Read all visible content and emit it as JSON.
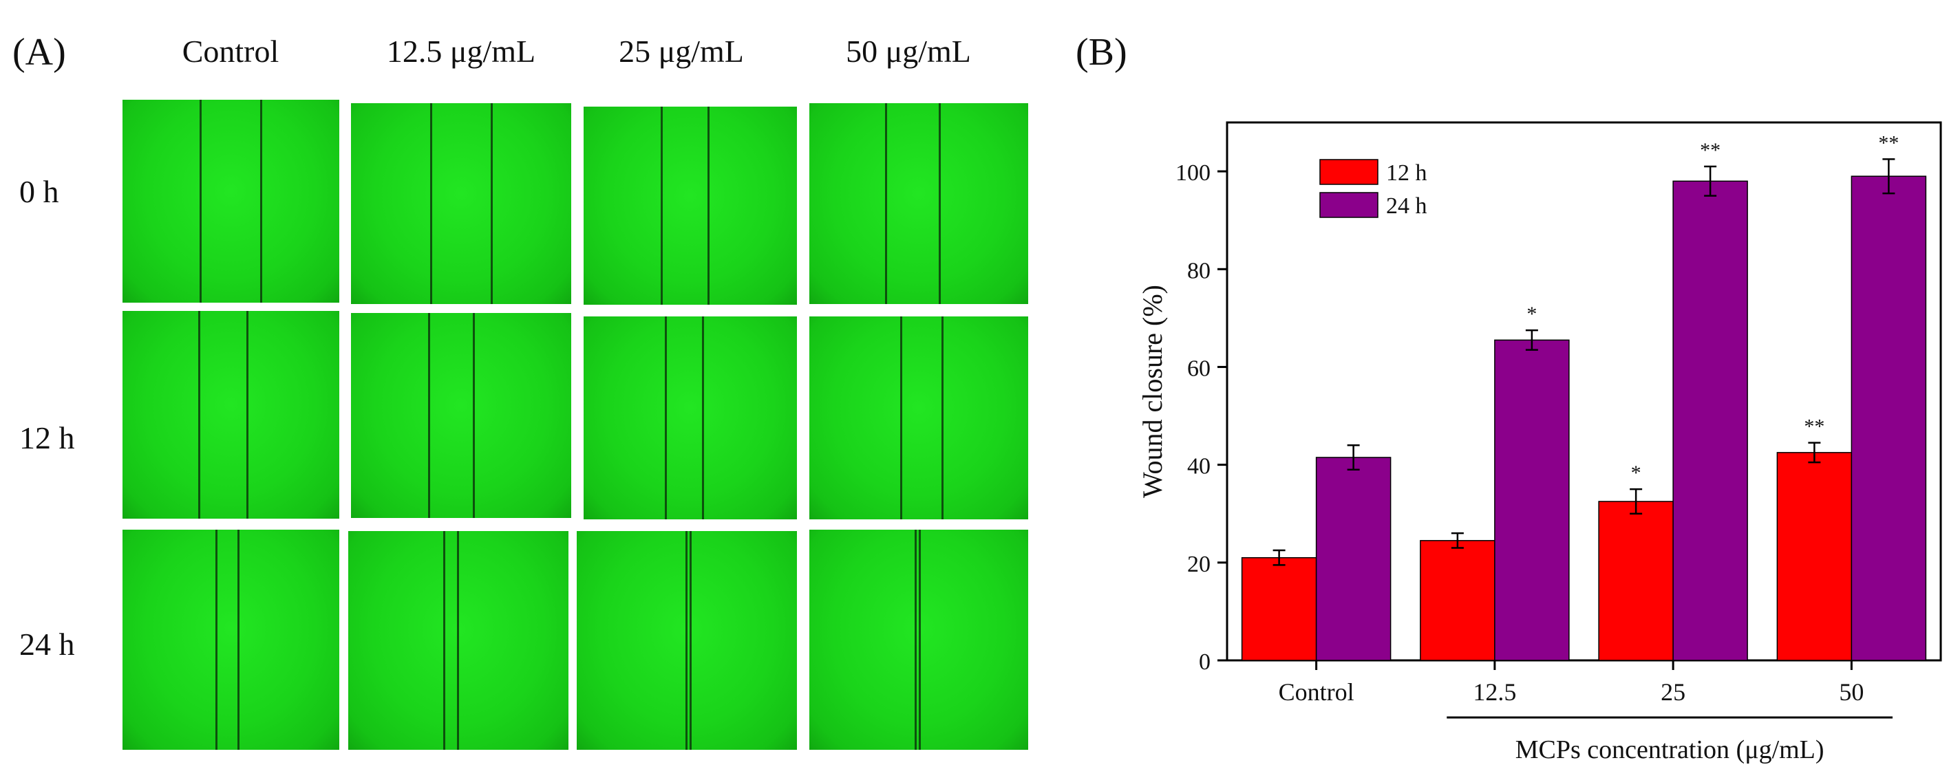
{
  "panel_a": {
    "label": "(A)",
    "columns": [
      "Control",
      "12.5 μg/mL",
      "25 μg/mL",
      "50 μg/mL"
    ],
    "rows": [
      "0 h",
      "12 h",
      "24 h"
    ],
    "tile_color": "#1ad41a",
    "scratch_color": "#0c3a0c"
  },
  "panel_b": {
    "label": "(B)"
  },
  "chart_data": {
    "type": "bar",
    "title": "",
    "xlabel": "MCPs concentration (μg/mL)",
    "ylabel": "Wound closure (%)",
    "categories": [
      "Control",
      "12.5",
      "25",
      "50"
    ],
    "ylim": [
      0,
      110
    ],
    "yticks": [
      0,
      20,
      40,
      60,
      80,
      100
    ],
    "legend_position": "top-left",
    "series": [
      {
        "name": "12 h",
        "color": "#ff0000",
        "values": [
          21,
          24.5,
          32.5,
          42.5
        ],
        "errors": [
          1.5,
          1.5,
          2.5,
          2
        ],
        "annotations": [
          "",
          "",
          "*",
          "**"
        ]
      },
      {
        "name": "24 h",
        "color": "#8b008b",
        "values": [
          41.5,
          65.5,
          98,
          99
        ],
        "errors": [
          2.5,
          2,
          3,
          3.5
        ],
        "annotations": [
          "",
          "*",
          "**",
          "**"
        ]
      }
    ]
  }
}
